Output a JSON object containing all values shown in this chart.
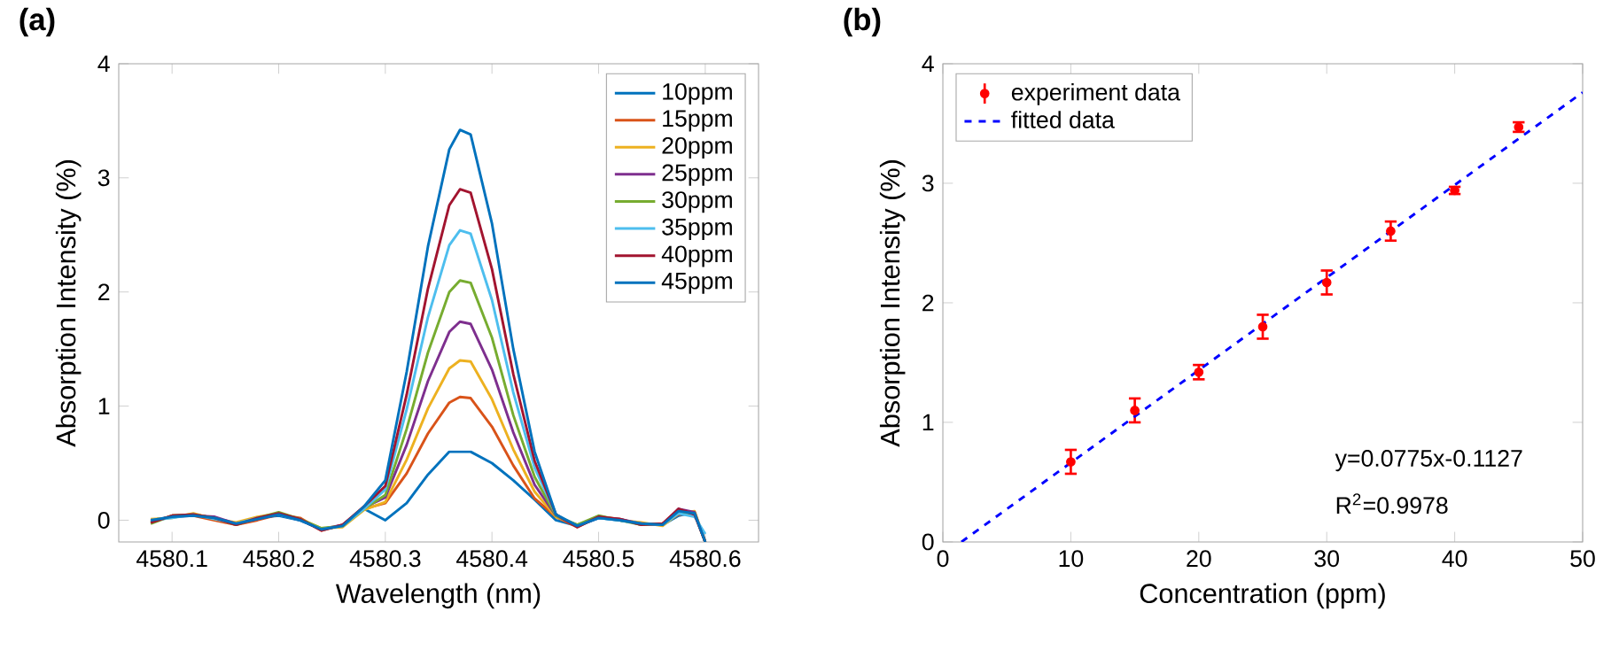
{
  "chart_data": [
    {
      "type": "line",
      "title": "(a)",
      "xlabel": "Wavelength (nm)",
      "ylabel": "Absorption Intensity (%)",
      "x": [
        4580.08,
        4580.1,
        4580.12,
        4580.14,
        4580.16,
        4580.18,
        4580.2,
        4580.22,
        4580.24,
        4580.26,
        4580.28,
        4580.3,
        4580.32,
        4580.34,
        4580.36,
        4580.37,
        4580.38,
        4580.4,
        4580.42,
        4580.44,
        4580.46,
        4580.48,
        4580.5,
        4580.52,
        4580.54,
        4580.56,
        4580.575,
        4580.59,
        4580.6
      ],
      "xlim": [
        4580.05,
        4580.65
      ],
      "ylim": [
        -0.19,
        4
      ],
      "xticks": [
        4580.1,
        4580.2,
        4580.3,
        4580.4,
        4580.5,
        4580.6
      ],
      "yticks": [
        0,
        1,
        2,
        3,
        4
      ],
      "legend": "top right",
      "series": [
        {
          "name": "10ppm",
          "color": "#0072bd",
          "values": [
            0.0,
            0.03,
            0.05,
            0.02,
            -0.03,
            0.02,
            0.04,
            0.0,
            -0.08,
            -0.05,
            0.1,
            0.0,
            0.15,
            0.4,
            0.6,
            0.6,
            0.6,
            0.5,
            0.35,
            0.18,
            0.0,
            -0.05,
            0.02,
            0.0,
            -0.03,
            -0.04,
            0.04,
            0.07,
            -0.19
          ]
        },
        {
          "name": "15ppm",
          "color": "#d95319",
          "values": [
            -0.02,
            0.04,
            0.04,
            0.0,
            -0.04,
            0.0,
            0.05,
            0.02,
            -0.09,
            -0.04,
            0.1,
            0.15,
            0.41,
            0.76,
            1.03,
            1.08,
            1.07,
            0.82,
            0.48,
            0.19,
            0.03,
            -0.06,
            0.03,
            0.01,
            -0.04,
            -0.03,
            0.05,
            0.06,
            -0.19
          ]
        },
        {
          "name": "20ppm",
          "color": "#edb120",
          "values": [
            0.01,
            0.02,
            0.06,
            0.01,
            -0.02,
            0.03,
            0.06,
            0.01,
            -0.07,
            -0.06,
            0.09,
            0.16,
            0.53,
            0.98,
            1.33,
            1.4,
            1.39,
            1.06,
            0.62,
            0.25,
            0.03,
            -0.04,
            0.03,
            0.0,
            -0.02,
            -0.05,
            0.06,
            0.08,
            -0.19
          ]
        },
        {
          "name": "25ppm",
          "color": "#7e2f8e",
          "values": [
            -0.01,
            0.03,
            0.04,
            0.03,
            -0.03,
            0.01,
            0.05,
            0.0,
            -0.08,
            -0.04,
            0.11,
            0.2,
            0.66,
            1.22,
            1.65,
            1.74,
            1.72,
            1.32,
            0.77,
            0.31,
            0.04,
            -0.05,
            0.02,
            0.01,
            -0.03,
            -0.04,
            0.1,
            0.07,
            -0.19
          ]
        },
        {
          "name": "30ppm",
          "color": "#77ac30",
          "values": [
            -0.03,
            0.04,
            0.05,
            0.02,
            -0.04,
            0.02,
            0.07,
            0.01,
            -0.07,
            -0.05,
            0.1,
            0.22,
            0.8,
            1.47,
            2.0,
            2.1,
            2.08,
            1.6,
            0.92,
            0.38,
            0.04,
            -0.04,
            0.04,
            0.0,
            -0.04,
            -0.03,
            0.07,
            0.06,
            -0.19
          ]
        },
        {
          "name": "35ppm",
          "color": "#4dbeee",
          "values": [
            0.0,
            0.02,
            0.05,
            0.01,
            -0.03,
            0.02,
            0.05,
            0.0,
            -0.08,
            -0.05,
            0.1,
            0.27,
            0.97,
            1.78,
            2.41,
            2.54,
            2.51,
            1.93,
            1.12,
            0.46,
            0.05,
            -0.05,
            0.02,
            0.0,
            -0.03,
            -0.04,
            0.06,
            0.03,
            -0.12
          ]
        },
        {
          "name": "40ppm",
          "color": "#a2142f",
          "values": [
            -0.02,
            0.04,
            0.05,
            0.02,
            -0.04,
            0.02,
            0.06,
            0.01,
            -0.09,
            -0.04,
            0.12,
            0.3,
            1.1,
            2.03,
            2.76,
            2.9,
            2.87,
            2.2,
            1.28,
            0.52,
            0.05,
            -0.06,
            0.03,
            0.01,
            -0.04,
            -0.03,
            0.1,
            0.05,
            -0.19
          ]
        },
        {
          "name": "45ppm",
          "color": "#0072bd",
          "values": [
            0.0,
            0.03,
            0.04,
            0.02,
            -0.03,
            0.01,
            0.05,
            0.0,
            -0.08,
            -0.05,
            0.12,
            0.35,
            1.3,
            2.4,
            3.25,
            3.42,
            3.38,
            2.6,
            1.5,
            0.6,
            0.05,
            -0.05,
            0.02,
            0.0,
            -0.03,
            -0.04,
            0.08,
            0.06,
            -0.19
          ]
        }
      ]
    },
    {
      "type": "scatter",
      "title": "(b)",
      "xlabel": "Concentration (ppm)",
      "ylabel": "Absorption Intensity (%)",
      "xlim": [
        0,
        50
      ],
      "ylim": [
        0,
        4
      ],
      "xticks": [
        0,
        10,
        20,
        30,
        40,
        50
      ],
      "yticks": [
        0,
        1,
        2,
        3,
        4
      ],
      "legend": "top left",
      "annotations": [
        "y=0.0775x-0.1127",
        "R$^{2}$=0.9978"
      ],
      "series": [
        {
          "name": "experiment data",
          "color": "#ff0000",
          "marker": "circle",
          "x": [
            10,
            15,
            20,
            25,
            30,
            35,
            40,
            45
          ],
          "values": [
            0.67,
            1.1,
            1.42,
            1.8,
            2.17,
            2.6,
            2.94,
            3.47
          ],
          "errors": [
            0.1,
            0.1,
            0.06,
            0.1,
            0.1,
            0.08,
            0.03,
            0.04
          ]
        },
        {
          "name": "fitted data",
          "type": "line",
          "color": "#0000ff",
          "line_style": "dashed",
          "x": [
            1.45,
            50
          ],
          "values": [
            0,
            3.76
          ]
        }
      ]
    }
  ]
}
